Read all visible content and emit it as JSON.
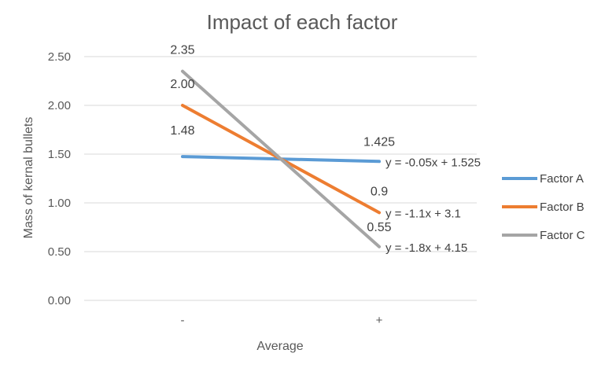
{
  "chart_data": {
    "type": "line",
    "title": "Impact of each factor",
    "xlabel": "Average",
    "ylabel": "Mass of kernal bullets",
    "categories": [
      "-",
      "+"
    ],
    "ylim": [
      0,
      2.5
    ],
    "yticks": [
      "0.00",
      "0.50",
      "1.00",
      "1.50",
      "2.00",
      "2.50"
    ],
    "grid": true,
    "legend_position": "right",
    "series": [
      {
        "name": "Factor A",
        "color": "#5B9BD5",
        "values": [
          1.475,
          1.425
        ],
        "data_labels": [
          "1.48",
          "1.425"
        ],
        "trendline": "y = -0.05x + 1.525"
      },
      {
        "name": "Factor B",
        "color": "#ED7D31",
        "values": [
          2.0,
          0.9
        ],
        "data_labels": [
          "2.00",
          "0.9"
        ],
        "trendline": "y = -1.1x + 3.1"
      },
      {
        "name": "Factor C",
        "color": "#A5A5A5",
        "values": [
          2.35,
          0.55
        ],
        "data_labels": [
          "2.35",
          "0.55"
        ],
        "trendline": "y = -1.8x + 4.15"
      }
    ]
  }
}
